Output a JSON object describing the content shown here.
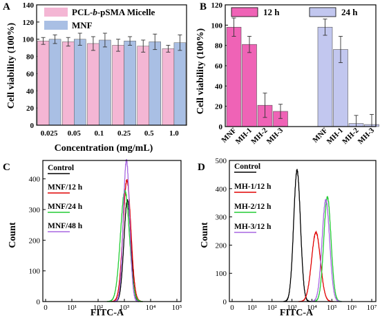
{
  "panel_labels": {
    "a": "A",
    "b": "B",
    "c": "C",
    "d": "D"
  },
  "colors": {
    "pink": "#f4b6d4",
    "blue": "#a9bfe4",
    "magenta": "#ef63b6",
    "lavender": "#c2c7ef",
    "black": "#000000",
    "red": "#e00000",
    "green": "#22cc33",
    "purple": "#a766e0"
  },
  "chart_data": [
    {
      "panel": "A",
      "type": "bar",
      "categories": [
        "0.025",
        "0.05",
        "0.1",
        "0.25",
        "0.5",
        "1.0"
      ],
      "series": [
        {
          "name": "PCL-b-pSMA Micelle",
          "values": [
            98,
            97,
            95,
            93,
            92,
            89
          ],
          "errors": [
            4,
            5,
            8,
            7,
            7,
            4
          ]
        },
        {
          "name": "MNF",
          "values": [
            100,
            100,
            99,
            98,
            97,
            96
          ],
          "errors": [
            5,
            7,
            8,
            5,
            9,
            9
          ]
        }
      ],
      "xlabel": "Concentration (mg/mL)",
      "ylabel": "Cell viability (100%)",
      "ylim": [
        0,
        140
      ],
      "yticks": [
        "0",
        "20",
        "40",
        "60",
        "80",
        "100",
        "120",
        "140"
      ],
      "legend_position": "top-left",
      "legend_labels": {
        "micelle_prefix": "PCL-",
        "micelle_italic": "b",
        "micelle_suffix": "-pSMA Micelle",
        "mnf": "MNF"
      }
    },
    {
      "panel": "B",
      "type": "bar",
      "categories": [
        "MNF",
        "MH-1",
        "MH-2",
        "MH-3"
      ],
      "series": [
        {
          "name": "12 h",
          "values": [
            98,
            81,
            21,
            15
          ],
          "errors": [
            9,
            8,
            12,
            7
          ]
        },
        {
          "name": "24 h",
          "values": [
            98,
            76,
            3,
            2
          ],
          "errors": [
            8,
            13,
            8,
            10
          ]
        }
      ],
      "xlabel": "",
      "ylabel": "Cell viability (100%)",
      "ylim": [
        0,
        120
      ],
      "yticks": [
        "0",
        "20",
        "40",
        "60",
        "80",
        "100",
        "120"
      ],
      "legend_position": "top"
    },
    {
      "panel": "C",
      "type": "line",
      "xlabel": "FITC-A",
      "ylabel": "Count",
      "x_scale": "log",
      "xticks": [
        "0",
        "10¹",
        "10²",
        "10³",
        "10⁴",
        "10⁵"
      ],
      "ylim": [
        0,
        460
      ],
      "yticks": [
        "0",
        "100",
        "200",
        "300",
        "400"
      ],
      "series": [
        {
          "name": "Control",
          "color": "black",
          "peak_x": 1300,
          "peak_y": 330,
          "width": 0.13
        },
        {
          "name": "MNF/12 h",
          "color": "red",
          "peak_x": 1250,
          "peak_y": 395,
          "width": 0.15
        },
        {
          "name": "MNF/24 h",
          "color": "green",
          "peak_x": 1050,
          "peak_y": 360,
          "width": 0.17
        },
        {
          "name": "MNF/48 h",
          "color": "purple",
          "peak_x": 1200,
          "peak_y": 460,
          "width": 0.12
        }
      ]
    },
    {
      "panel": "D",
      "type": "line",
      "xlabel": "FITC-A",
      "ylabel": "Count",
      "x_scale": "log",
      "xticks": [
        "0",
        "10¹",
        "10²",
        "10³",
        "10⁴",
        "10⁵",
        "10⁶",
        "10⁷"
      ],
      "ylim": [
        0,
        500
      ],
      "yticks": [
        "0",
        "100",
        "200",
        "300",
        "400",
        "500"
      ],
      "series": [
        {
          "name": "Control",
          "color": "black",
          "peak_x": 1800,
          "peak_y": 465,
          "width": 0.17
        },
        {
          "name": "MH-1/12 h",
          "color": "red",
          "peak_x": 16000,
          "peak_y": 245,
          "width": 0.22
        },
        {
          "name": "MH-2/12 h",
          "color": "green",
          "peak_x": 60000,
          "peak_y": 370,
          "width": 0.18
        },
        {
          "name": "MH-3/12 h",
          "color": "purple",
          "peak_x": 50000,
          "peak_y": 360,
          "width": 0.19
        }
      ]
    }
  ]
}
